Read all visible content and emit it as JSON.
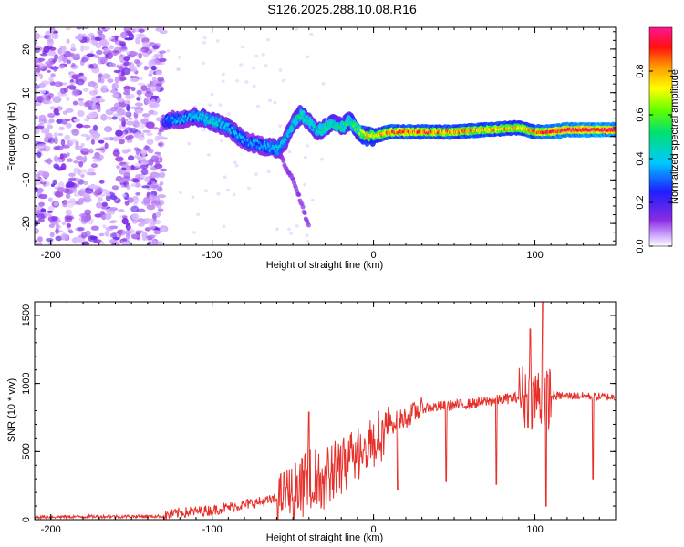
{
  "title": "S126.2025.288.10.08.R16",
  "colors": {
    "snr_line": "#e8302b",
    "axis": "#000000"
  },
  "chart_data": [
    {
      "type": "heatmap",
      "name": "spectrogram",
      "xlabel": "Height of straight line (km)",
      "ylabel": "Frequency (Hz)",
      "xlim": [
        -210,
        150
      ],
      "ylim": [
        -25,
        25
      ],
      "x_ticks": [
        -200,
        -100,
        0,
        100
      ],
      "y_ticks": [
        -20,
        -10,
        0,
        10,
        20
      ],
      "colorbar": {
        "label": "Normalized spectral amplitude",
        "range": [
          0.0,
          1.0
        ],
        "ticks": [
          "0.0",
          "0.2",
          "0.4",
          "0.6",
          "0.8"
        ],
        "tick_values": [
          0.0,
          0.2,
          0.4,
          0.6,
          0.8
        ],
        "colormap": "rainbow (white→purple→blue→cyan→green→yellow→orange→red→magenta)"
      },
      "noise_region_x": [
        -210,
        -130
      ],
      "trace": [
        {
          "x": -130,
          "f": 3.5,
          "a": 0.3
        },
        {
          "x": -120,
          "f": 4.0,
          "a": 0.35
        },
        {
          "x": -110,
          "f": 4.5,
          "a": 0.4
        },
        {
          "x": -100,
          "f": 3.5,
          "a": 0.45
        },
        {
          "x": -90,
          "f": 2.0,
          "a": 0.4
        },
        {
          "x": -80,
          "f": -1.0,
          "a": 0.35
        },
        {
          "x": -70,
          "f": -2.0,
          "a": 0.35
        },
        {
          "x": -60,
          "f": -3.0,
          "a": 0.4
        },
        {
          "x": -55,
          "f": -1.0,
          "a": 0.4
        },
        {
          "x": -50,
          "f": 3.0,
          "a": 0.45
        },
        {
          "x": -45,
          "f": 5.0,
          "a": 0.5
        },
        {
          "x": -40,
          "f": 3.5,
          "a": 0.45
        },
        {
          "x": -35,
          "f": 1.0,
          "a": 0.45
        },
        {
          "x": -30,
          "f": 2.0,
          "a": 0.5
        },
        {
          "x": -25,
          "f": 3.0,
          "a": 0.5
        },
        {
          "x": -20,
          "f": 2.0,
          "a": 0.5
        },
        {
          "x": -15,
          "f": 3.5,
          "a": 0.55
        },
        {
          "x": -10,
          "f": 1.5,
          "a": 0.55
        },
        {
          "x": -5,
          "f": 0.0,
          "a": 0.75
        },
        {
          "x": 0,
          "f": 0.0,
          "a": 0.7
        },
        {
          "x": 10,
          "f": 1.0,
          "a": 0.85
        },
        {
          "x": 30,
          "f": 1.0,
          "a": 0.85
        },
        {
          "x": 50,
          "f": 1.0,
          "a": 0.8
        },
        {
          "x": 70,
          "f": 1.5,
          "a": 0.8
        },
        {
          "x": 90,
          "f": 2.0,
          "a": 0.75
        },
        {
          "x": 100,
          "f": 1.0,
          "a": 0.8
        },
        {
          "x": 110,
          "f": 1.0,
          "a": 0.9
        },
        {
          "x": 120,
          "f": 1.5,
          "a": 0.95
        },
        {
          "x": 130,
          "f": 1.5,
          "a": 0.95
        },
        {
          "x": 140,
          "f": 1.5,
          "a": 0.95
        },
        {
          "x": 150,
          "f": 1.5,
          "a": 0.95
        }
      ],
      "branch": [
        {
          "x": -60,
          "f": -3.0
        },
        {
          "x": -50,
          "f": -10.0
        },
        {
          "x": -45,
          "f": -15.0
        },
        {
          "x": -40,
          "f": -21.0
        }
      ]
    },
    {
      "type": "line",
      "name": "snr",
      "xlabel": "Height of straight line (km)",
      "ylabel": "SNR (10 * v/v)",
      "xlim": [
        -210,
        150
      ],
      "ylim": [
        0,
        1600
      ],
      "x_ticks": [
        -200,
        -100,
        0,
        100
      ],
      "y_ticks": [
        0,
        500,
        1000,
        1500
      ],
      "trend": [
        {
          "x": -210,
          "y": 20
        },
        {
          "x": -130,
          "y": 25
        },
        {
          "x": -120,
          "y": 50
        },
        {
          "x": -100,
          "y": 70
        },
        {
          "x": -80,
          "y": 110
        },
        {
          "x": -60,
          "y": 150
        },
        {
          "x": -40,
          "y": 330
        },
        {
          "x": -20,
          "y": 450
        },
        {
          "x": 0,
          "y": 650
        },
        {
          "x": 20,
          "y": 750
        },
        {
          "x": 30,
          "y": 820
        },
        {
          "x": 60,
          "y": 850
        },
        {
          "x": 90,
          "y": 900
        },
        {
          "x": 120,
          "y": 910
        },
        {
          "x": 150,
          "y": 900
        }
      ],
      "dips": [
        {
          "x": 15,
          "y": 220
        },
        {
          "x": 45,
          "y": 280
        },
        {
          "x": 76,
          "y": 260
        },
        {
          "x": 97,
          "y": 200
        },
        {
          "x": 107,
          "y": 100
        },
        {
          "x": 136,
          "y": 300
        }
      ],
      "peaks": [
        {
          "x": -40,
          "y": 790
        },
        {
          "x": 97,
          "y": 1400
        },
        {
          "x": 105,
          "y": 1610
        }
      ]
    }
  ]
}
